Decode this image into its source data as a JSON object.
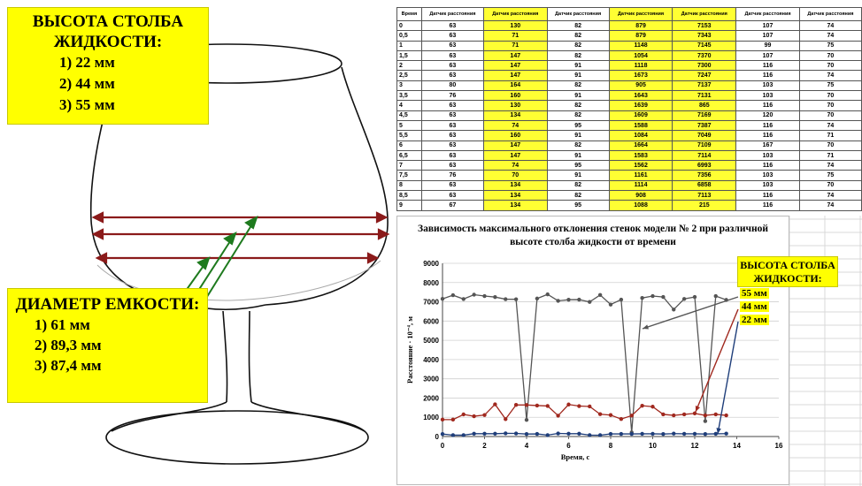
{
  "height_box": {
    "title": "ВЫСОТА СТОЛБА ЖИДКОСТИ:",
    "items": [
      "1)  22 мм",
      "2)  44 мм",
      "3)  55 мм"
    ]
  },
  "diameter_box": {
    "title": "ДИАМЕТР ЕМКОСТИ:",
    "items": [
      "1)  61 мм",
      "2)  89,3 мм",
      "3)  87,4 мм"
    ]
  },
  "table": {
    "headers": [
      "Время",
      "Датчик расстояния",
      "Датчик расстояния",
      "Датчик расстояния",
      "Датчик расстояния",
      "Датчик расстояния",
      "Датчик расстояния",
      "Датчик расстояния"
    ],
    "highlight_cols": [
      2,
      4,
      5
    ],
    "rows": [
      [
        "0",
        "63",
        "130",
        "82",
        "879",
        "7153",
        "107",
        "74"
      ],
      [
        "0,5",
        "63",
        "71",
        "82",
        "879",
        "7343",
        "107",
        "74"
      ],
      [
        "1",
        "63",
        "71",
        "82",
        "1148",
        "7145",
        "99",
        "75"
      ],
      [
        "1,5",
        "63",
        "147",
        "82",
        "1054",
        "7370",
        "107",
        "70"
      ],
      [
        "2",
        "63",
        "147",
        "91",
        "1118",
        "7300",
        "116",
        "70"
      ],
      [
        "2,5",
        "63",
        "147",
        "91",
        "1673",
        "7247",
        "116",
        "74"
      ],
      [
        "3",
        "80",
        "164",
        "82",
        "905",
        "7137",
        "103",
        "75"
      ],
      [
        "3,5",
        "76",
        "160",
        "91",
        "1643",
        "7131",
        "103",
        "70"
      ],
      [
        "4",
        "63",
        "130",
        "82",
        "1639",
        "865",
        "116",
        "70"
      ],
      [
        "4,5",
        "63",
        "134",
        "82",
        "1609",
        "7169",
        "120",
        "70"
      ],
      [
        "5",
        "63",
        "74",
        "95",
        "1588",
        "7387",
        "116",
        "74"
      ],
      [
        "5,5",
        "63",
        "160",
        "91",
        "1084",
        "7049",
        "116",
        "71"
      ],
      [
        "6",
        "63",
        "147",
        "82",
        "1664",
        "7109",
        "167",
        "70"
      ],
      [
        "6,5",
        "63",
        "147",
        "91",
        "1583",
        "7114",
        "103",
        "71"
      ],
      [
        "7",
        "63",
        "74",
        "95",
        "1562",
        "6993",
        "116",
        "74"
      ],
      [
        "7,5",
        "76",
        "70",
        "91",
        "1161",
        "7356",
        "103",
        "75"
      ],
      [
        "8",
        "63",
        "134",
        "82",
        "1114",
        "6858",
        "103",
        "70"
      ],
      [
        "8,5",
        "63",
        "134",
        "82",
        "908",
        "7113",
        "116",
        "74"
      ],
      [
        "9",
        "67",
        "134",
        "95",
        "1088",
        "215",
        "116",
        "74"
      ]
    ]
  },
  "legend_box": {
    "title": "ВЫСОТА СТОЛБА ЖИДКОСТИ:",
    "labels": [
      "55 мм",
      "44 мм",
      "22 мм"
    ]
  },
  "colors": {
    "yellow": "#ffff00",
    "series_55": "#555555",
    "series_44": "#a0281e",
    "series_22": "#1f3e7a",
    "arrow_green": "#1e7a1e",
    "line_red": "#8b1a1a"
  },
  "chart_data": {
    "type": "line",
    "title": "Зависимость максимального отклонения стенок модели № 2 при различной высоте столба жидкости от времени",
    "xlabel": "Время, с",
    "ylabel": "Расстояние · 10⁻⁴, м",
    "xlim": [
      0,
      16
    ],
    "ylim": [
      0,
      9000
    ],
    "x_ticks": [
      0,
      2,
      4,
      6,
      8,
      10,
      12,
      14,
      16
    ],
    "y_ticks": [
      0,
      1000,
      2000,
      3000,
      4000,
      5000,
      6000,
      7000,
      8000,
      9000
    ],
    "grid": "horizontal",
    "legend": "top-right",
    "series": [
      {
        "name": "55 мм",
        "x": [
          0,
          0.5,
          1,
          1.5,
          2,
          2.5,
          3,
          3.5,
          4,
          4.5,
          5,
          5.5,
          6,
          6.5,
          7,
          7.5,
          8,
          8.5,
          9,
          9.5,
          10,
          10.5,
          11,
          11.5,
          12,
          12.5,
          13,
          13.5
        ],
        "values": [
          7153,
          7343,
          7145,
          7370,
          7300,
          7247,
          7137,
          7131,
          865,
          7169,
          7387,
          7049,
          7109,
          7114,
          6993,
          7356,
          6858,
          7113,
          215,
          7200,
          7300,
          7250,
          6600,
          7150,
          7250,
          800,
          7300,
          7100
        ]
      },
      {
        "name": "44 мм",
        "x": [
          0,
          0.5,
          1,
          1.5,
          2,
          2.5,
          3,
          3.5,
          4,
          4.5,
          5,
          5.5,
          6,
          6.5,
          7,
          7.5,
          8,
          8.5,
          9,
          9.5,
          10,
          10.5,
          11,
          11.5,
          12,
          12.5,
          13,
          13.5
        ],
        "values": [
          879,
          879,
          1148,
          1054,
          1118,
          1673,
          905,
          1643,
          1639,
          1609,
          1588,
          1084,
          1664,
          1583,
          1562,
          1161,
          1114,
          908,
          1088,
          1600,
          1550,
          1150,
          1100,
          1150,
          1200,
          1100,
          1150,
          1100
        ]
      },
      {
        "name": "22 мм",
        "x": [
          0,
          0.5,
          1,
          1.5,
          2,
          2.5,
          3,
          3.5,
          4,
          4.5,
          5,
          5.5,
          6,
          6.5,
          7,
          7.5,
          8,
          8.5,
          9,
          9.5,
          10,
          10.5,
          11,
          11.5,
          12,
          12.5,
          13,
          13.5
        ],
        "values": [
          130,
          71,
          71,
          147,
          147,
          147,
          164,
          160,
          130,
          134,
          74,
          160,
          147,
          147,
          74,
          70,
          134,
          134,
          134,
          140,
          140,
          130,
          150,
          140,
          140,
          130,
          140,
          150
        ]
      }
    ]
  }
}
